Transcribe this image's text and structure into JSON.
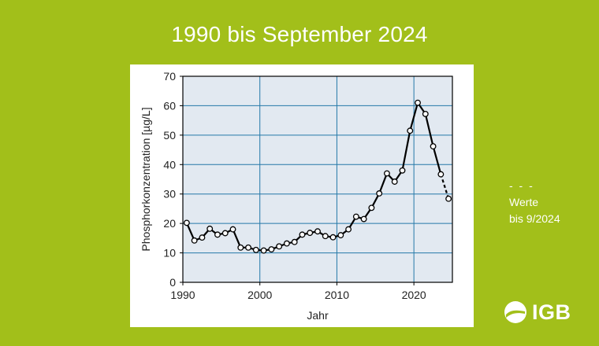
{
  "page": {
    "title": "1990 bis September 2024",
    "legend_dash": "- - -",
    "legend_line1": "Werte",
    "legend_line2": "bis 9/2024",
    "logo_text": "IGB",
    "logo_icon": "igb-wave-logo-icon"
  },
  "colors": {
    "background": "#a2bf1a",
    "plot_bg": "#e2e9f1",
    "grid": "#2479a8",
    "line": "#000000"
  },
  "chart_data": {
    "type": "line",
    "title": "",
    "xlabel": "Jahr",
    "ylabel": "Phosphorkonzentration [µg/L]",
    "xlim": [
      1990,
      2025
    ],
    "ylim": [
      0,
      70
    ],
    "xticks": [
      1990,
      2000,
      2010,
      2020
    ],
    "yticks": [
      0,
      10,
      20,
      30,
      40,
      50,
      60,
      70
    ],
    "grid": true,
    "series": [
      {
        "x": [
          1990.5,
          1991.5,
          1992.5,
          1993.5,
          1994.5,
          1995.5,
          1996.5,
          1997.5,
          1998.5,
          1999.5,
          2000.5,
          2001.5,
          2002.5,
          2003.5,
          2004.5,
          2005.5,
          2006.5,
          2007.5,
          2008.5,
          2009.5,
          2010.5,
          2011.5,
          2012.5,
          2013.5,
          2014.5,
          2015.5,
          2016.5,
          2017.5,
          2018.5,
          2019.5,
          2020.5,
          2021.5,
          2022.5,
          2023.5,
          2024.5
        ],
        "y": [
          20.2,
          14.2,
          15.2,
          18.2,
          16.2,
          16.7,
          18.0,
          11.8,
          11.8,
          11.0,
          10.8,
          11.2,
          12.2,
          13.2,
          13.7,
          16.2,
          16.8,
          17.3,
          15.7,
          15.3,
          16.0,
          18.0,
          22.3,
          21.5,
          25.3,
          30.2,
          37.0,
          34.2,
          38.0,
          51.5,
          61.0,
          57.2,
          46.2,
          36.7,
          28.4
        ],
        "dashed_last_segment": true
      }
    ]
  }
}
